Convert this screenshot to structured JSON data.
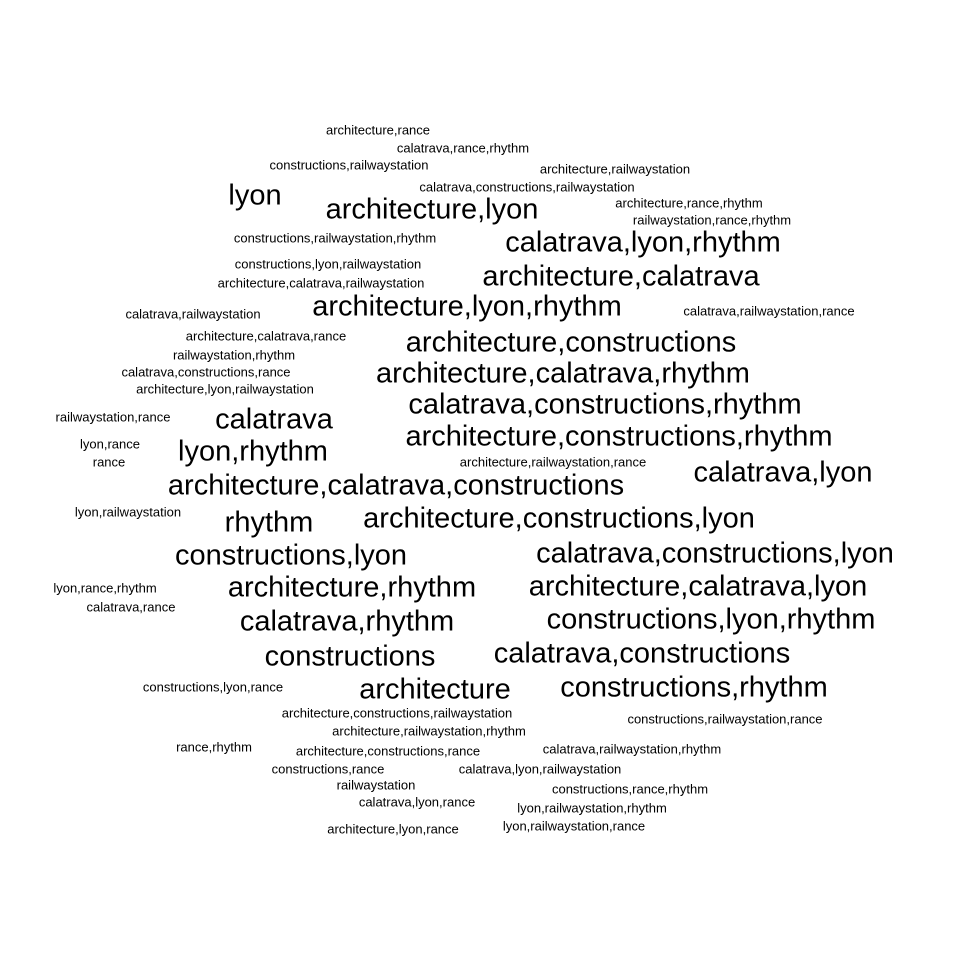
{
  "colors": {
    "background": "#ffffff",
    "text": "#000000"
  },
  "words": [
    {
      "text": "architecture,rance",
      "weight": 1
    },
    {
      "text": "calatrava,rance,rhythm",
      "weight": 1
    },
    {
      "text": "constructions,railwaystation",
      "weight": 1
    },
    {
      "text": "architecture,railwaystation",
      "weight": 1
    },
    {
      "text": "calatrava,constructions,railwaystation",
      "weight": 1
    },
    {
      "text": "lyon",
      "weight": 3
    },
    {
      "text": "architecture,lyon",
      "weight": 3
    },
    {
      "text": "architecture,rance,rhythm",
      "weight": 1
    },
    {
      "text": "railwaystation,rance,rhythm",
      "weight": 1
    },
    {
      "text": "constructions,railwaystation,rhythm",
      "weight": 1
    },
    {
      "text": "calatrava,lyon,rhythm",
      "weight": 3
    },
    {
      "text": "constructions,lyon,railwaystation",
      "weight": 1
    },
    {
      "text": "architecture,calatrava",
      "weight": 3
    },
    {
      "text": "architecture,calatrava,railwaystation",
      "weight": 1
    },
    {
      "text": "calatrava,railwaystation",
      "weight": 1
    },
    {
      "text": "architecture,lyon,rhythm",
      "weight": 3
    },
    {
      "text": "calatrava,railwaystation,rance",
      "weight": 1
    },
    {
      "text": "architecture,calatrava,rance",
      "weight": 1
    },
    {
      "text": "architecture,constructions",
      "weight": 3
    },
    {
      "text": "railwaystation,rhythm",
      "weight": 1
    },
    {
      "text": "calatrava,constructions,rance",
      "weight": 1
    },
    {
      "text": "architecture,calatrava,rhythm",
      "weight": 3
    },
    {
      "text": "architecture,lyon,railwaystation",
      "weight": 1
    },
    {
      "text": "railwaystation,rance",
      "weight": 1
    },
    {
      "text": "calatrava",
      "weight": 3
    },
    {
      "text": "calatrava,constructions,rhythm",
      "weight": 3
    },
    {
      "text": "lyon,rance",
      "weight": 1
    },
    {
      "text": "lyon,rhythm",
      "weight": 3
    },
    {
      "text": "architecture,constructions,rhythm",
      "weight": 3
    },
    {
      "text": "rance",
      "weight": 1
    },
    {
      "text": "architecture,railwaystation,rance",
      "weight": 1
    },
    {
      "text": "calatrava,lyon",
      "weight": 3
    },
    {
      "text": "architecture,calatrava,constructions",
      "weight": 3
    },
    {
      "text": "lyon,railwaystation",
      "weight": 1
    },
    {
      "text": "rhythm",
      "weight": 3
    },
    {
      "text": "architecture,constructions,lyon",
      "weight": 3
    },
    {
      "text": "constructions,lyon",
      "weight": 3
    },
    {
      "text": "calatrava,constructions,lyon",
      "weight": 3
    },
    {
      "text": "lyon,rance,rhythm",
      "weight": 1
    },
    {
      "text": "architecture,rhythm",
      "weight": 3
    },
    {
      "text": "architecture,calatrava,lyon",
      "weight": 3
    },
    {
      "text": "calatrava,rance",
      "weight": 1
    },
    {
      "text": "calatrava,rhythm",
      "weight": 3
    },
    {
      "text": "constructions,lyon,rhythm",
      "weight": 3
    },
    {
      "text": "constructions",
      "weight": 3
    },
    {
      "text": "calatrava,constructions",
      "weight": 3
    },
    {
      "text": "constructions,lyon,rance",
      "weight": 1
    },
    {
      "text": "architecture",
      "weight": 3
    },
    {
      "text": "constructions,rhythm",
      "weight": 3
    },
    {
      "text": "architecture,constructions,railwaystation",
      "weight": 1
    },
    {
      "text": "constructions,railwaystation,rance",
      "weight": 1
    },
    {
      "text": "architecture,railwaystation,rhythm",
      "weight": 1
    },
    {
      "text": "rance,rhythm",
      "weight": 1
    },
    {
      "text": "architecture,constructions,rance",
      "weight": 1
    },
    {
      "text": "calatrava,railwaystation,rhythm",
      "weight": 1
    },
    {
      "text": "constructions,rance",
      "weight": 1
    },
    {
      "text": "calatrava,lyon,railwaystation",
      "weight": 1
    },
    {
      "text": "railwaystation",
      "weight": 1
    },
    {
      "text": "constructions,rance,rhythm",
      "weight": 1
    },
    {
      "text": "calatrava,lyon,rance",
      "weight": 1
    },
    {
      "text": "lyon,railwaystation,rhythm",
      "weight": 1
    },
    {
      "text": "architecture,lyon,rance",
      "weight": 1
    },
    {
      "text": "lyon,railwaystation,rance",
      "weight": 1
    }
  ]
}
